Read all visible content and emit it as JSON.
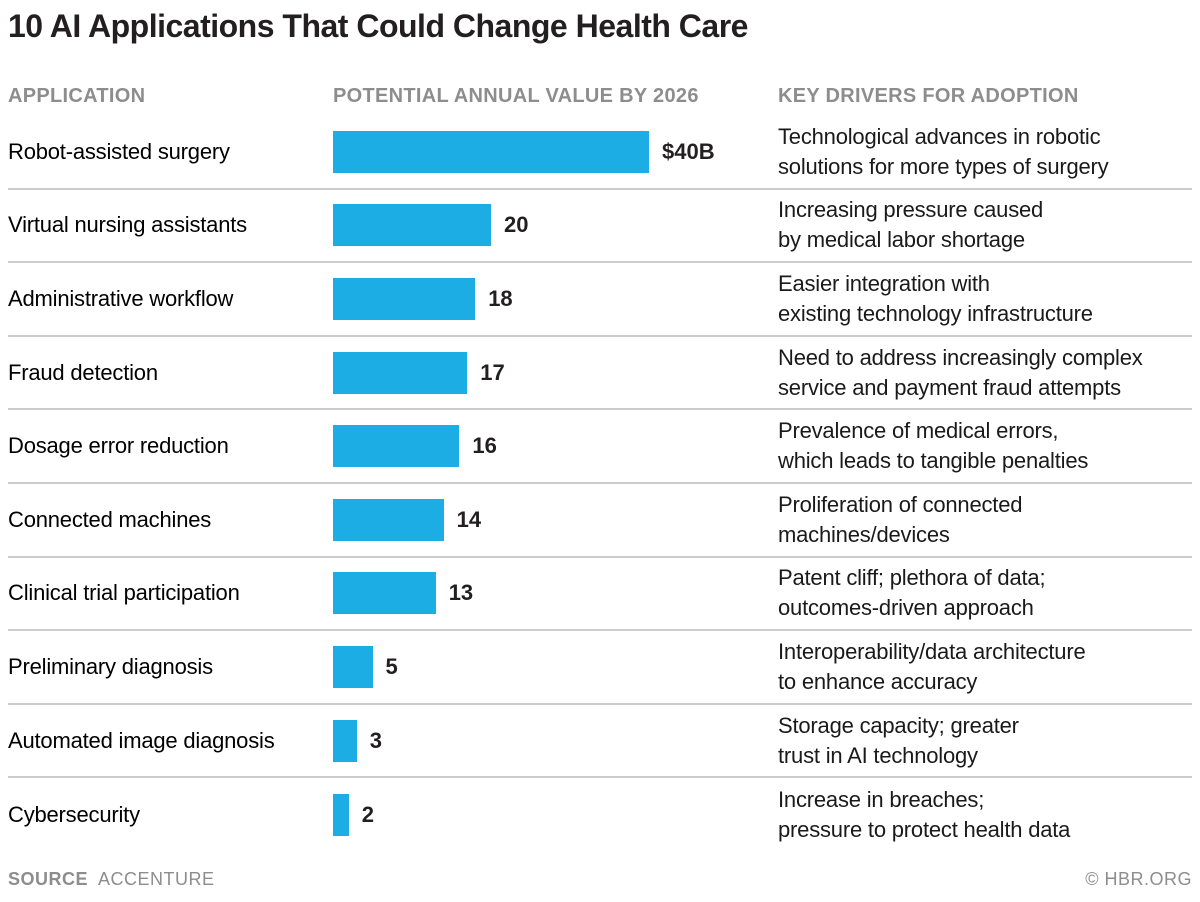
{
  "title": "10 AI Applications That Could Change Health Care",
  "columns": {
    "application": "APPLICATION",
    "value": "POTENTIAL ANNUAL VALUE BY 2026",
    "drivers": "KEY DRIVERS FOR ADOPTION"
  },
  "colors": {
    "bar": "#1cade4",
    "divider": "#cccccc",
    "header_gray": "#8d8d8d",
    "text_dark": "#231f20"
  },
  "chart_data": {
    "type": "bar",
    "orientation": "horizontal",
    "title": "10 AI Applications That Could Change Health Care",
    "xlabel": "POTENTIAL ANNUAL VALUE BY 2026",
    "ylabel": "APPLICATION",
    "unit": "USD billions",
    "xlim": [
      0,
      40
    ],
    "grid": false,
    "legend": false,
    "categories": [
      "Robot-assisted surgery",
      "Virtual nursing assistants",
      "Administrative workflow",
      "Fraud detection",
      "Dosage error reduction",
      "Connected machines",
      "Clinical trial participation",
      "Preliminary diagnosis",
      "Automated image diagnosis",
      "Cybersecurity"
    ],
    "values": [
      40,
      20,
      18,
      17,
      16,
      14,
      13,
      5,
      3,
      2
    ],
    "value_labels": [
      "$40B",
      "20",
      "18",
      "17",
      "16",
      "14",
      "13",
      "5",
      "3",
      "2"
    ],
    "annotations": [
      "Technological advances in robotic solutions for more types of surgery",
      "Increasing pressure caused by medical labor shortage",
      "Easier integration with existing technology infrastructure",
      "Need to address increasingly complex service and payment fraud attempts",
      "Prevalence of medical errors, which leads to tangible penalties",
      "Proliferation of connected machines/devices",
      "Patent cliff; plethora of data; outcomes-driven approach",
      "Interoperability/data architecture to enhance accuracy",
      "Storage capacity; greater trust in AI technology",
      "Increase in breaches; pressure to protect health data"
    ]
  },
  "rows": [
    {
      "application": "Robot-assisted surgery",
      "value": 40,
      "value_label": "$40B",
      "driver_line1": "Technological advances in robotic",
      "driver_line2": "solutions for more types of surgery"
    },
    {
      "application": "Virtual nursing assistants",
      "value": 20,
      "value_label": "20",
      "driver_line1": "Increasing pressure caused",
      "driver_line2": "by medical labor shortage"
    },
    {
      "application": "Administrative workflow",
      "value": 18,
      "value_label": "18",
      "driver_line1": "Easier integration with",
      "driver_line2": "existing technology infrastructure"
    },
    {
      "application": "Fraud detection",
      "value": 17,
      "value_label": "17",
      "driver_line1": "Need to address increasingly complex",
      "driver_line2": "service and payment fraud attempts"
    },
    {
      "application": "Dosage error reduction",
      "value": 16,
      "value_label": "16",
      "driver_line1": "Prevalence of medical errors,",
      "driver_line2": "which leads to tangible penalties"
    },
    {
      "application": "Connected machines",
      "value": 14,
      "value_label": "14",
      "driver_line1": "Proliferation of connected",
      "driver_line2": "machines/devices"
    },
    {
      "application": "Clinical trial participation",
      "value": 13,
      "value_label": "13",
      "driver_line1": "Patent cliff; plethora of data;",
      "driver_line2": "outcomes-driven approach"
    },
    {
      "application": "Preliminary diagnosis",
      "value": 5,
      "value_label": "5",
      "driver_line1": "Interoperability/data architecture",
      "driver_line2": "to enhance accuracy"
    },
    {
      "application": "Automated image diagnosis",
      "value": 3,
      "value_label": "3",
      "driver_line1": "Storage capacity; greater",
      "driver_line2": "trust in AI technology"
    },
    {
      "application": "Cybersecurity",
      "value": 2,
      "value_label": "2",
      "driver_line1": "Increase in breaches;",
      "driver_line2": "pressure to protect health data"
    }
  ],
  "footer": {
    "source_label": "SOURCE",
    "source_value": "ACCENTURE",
    "credit": "© HBR.ORG"
  }
}
